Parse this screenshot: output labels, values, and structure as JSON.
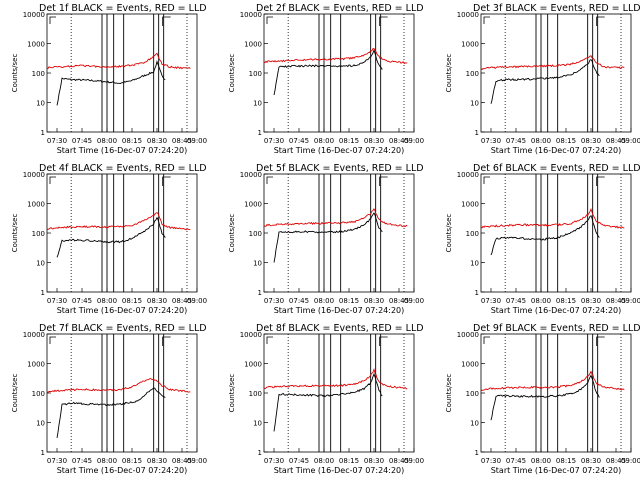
{
  "chart_data": [
    {
      "type": "line",
      "title": "Det 1f BLACK = Events, RED = LLD",
      "ylabel": "Counts/sec",
      "xlabel": "Start Time (16-Dec-07 07:24:20)",
      "x_ticks": [
        "07:30",
        "07:45",
        "08:00",
        "08:15",
        "08:30",
        "08:45",
        "09:00"
      ],
      "y_ticks": [
        "1",
        "10",
        "100",
        "1000",
        "10000"
      ],
      "ylim": [
        1,
        10000
      ],
      "scale": "log",
      "series": [
        {
          "name": "Events",
          "color": "#000000",
          "x_minutes": [
            30,
            33,
            38,
            45,
            52,
            60,
            68,
            75,
            82,
            88,
            90,
            93,
            95
          ],
          "values": [
            8,
            65,
            60,
            58,
            55,
            50,
            45,
            55,
            80,
            110,
            230,
            80,
            60
          ]
        },
        {
          "name": "LLD",
          "color": "#e00000",
          "x_minutes": [
            24,
            30,
            38,
            45,
            52,
            60,
            68,
            75,
            82,
            88,
            90,
            93,
            98,
            110
          ],
          "values": [
            150,
            160,
            170,
            175,
            170,
            160,
            170,
            180,
            220,
            350,
            450,
            200,
            160,
            140
          ]
        }
      ]
    },
    {
      "type": "line",
      "title": "Det 2f BLACK = Events, RED = LLD",
      "ylabel": "Counts/sec",
      "xlabel": "Start Time (16-Dec-07 07:24:20)",
      "x_ticks": [
        "07:30",
        "07:45",
        "08:00",
        "08:15",
        "08:30",
        "08:45",
        "09:00"
      ],
      "y_ticks": [
        "1",
        "10",
        "100",
        "1000",
        "10000"
      ],
      "ylim": [
        1,
        10000
      ],
      "scale": "log",
      "series": [
        {
          "name": "Events",
          "color": "#000000",
          "x_minutes": [
            30,
            33,
            40,
            50,
            60,
            70,
            78,
            84,
            88,
            90,
            93,
            95
          ],
          "values": [
            18,
            160,
            170,
            175,
            175,
            170,
            180,
            230,
            350,
            550,
            180,
            130
          ]
        },
        {
          "name": "LLD",
          "color": "#e00000",
          "x_minutes": [
            24,
            30,
            40,
            50,
            60,
            70,
            78,
            84,
            88,
            90,
            93,
            98,
            110
          ],
          "values": [
            240,
            250,
            270,
            280,
            290,
            300,
            320,
            400,
            550,
            700,
            350,
            250,
            220
          ]
        }
      ]
    },
    {
      "type": "line",
      "title": "Det 3f BLACK = Events, RED = LLD",
      "ylabel": "Counts/sec",
      "xlabel": "Start Time (16-Dec-07 07:24:20)",
      "x_ticks": [
        "07:30",
        "07:45",
        "08:00",
        "08:15",
        "08:30",
        "08:45",
        "09:00"
      ],
      "y_ticks": [
        "1",
        "10",
        "100",
        "1000",
        "10000"
      ],
      "ylim": [
        1,
        10000
      ],
      "scale": "log",
      "series": [
        {
          "name": "Events",
          "color": "#000000",
          "x_minutes": [
            30,
            33,
            40,
            50,
            60,
            70,
            78,
            84,
            88,
            90,
            93,
            95
          ],
          "values": [
            9,
            55,
            60,
            60,
            65,
            70,
            90,
            130,
            200,
            300,
            110,
            80
          ]
        },
        {
          "name": "LLD",
          "color": "#e00000",
          "x_minutes": [
            24,
            30,
            40,
            50,
            60,
            70,
            78,
            84,
            88,
            90,
            93,
            98,
            110
          ],
          "values": [
            140,
            150,
            160,
            165,
            170,
            180,
            200,
            260,
            330,
            380,
            220,
            160,
            150
          ]
        }
      ]
    },
    {
      "type": "line",
      "title": "Det 4f BLACK = Events, RED = LLD",
      "ylabel": "Counts/sec",
      "xlabel": "Start Time (16-Dec-07 07:24:20)",
      "x_ticks": [
        "07:30",
        "07:45",
        "08:00",
        "08:15",
        "08:30",
        "08:45",
        "09:00"
      ],
      "y_ticks": [
        "1",
        "10",
        "100",
        "1000",
        "10000"
      ],
      "ylim": [
        1,
        10000
      ],
      "scale": "log",
      "series": [
        {
          "name": "Events",
          "color": "#000000",
          "x_minutes": [
            30,
            33,
            40,
            50,
            60,
            68,
            75,
            82,
            88,
            90,
            93,
            95
          ],
          "values": [
            15,
            55,
            58,
            55,
            50,
            50,
            65,
            110,
            200,
            350,
            100,
            70
          ]
        },
        {
          "name": "LLD",
          "color": "#e00000",
          "x_minutes": [
            24,
            30,
            40,
            50,
            60,
            68,
            75,
            82,
            88,
            90,
            93,
            98,
            110
          ],
          "values": [
            140,
            150,
            160,
            165,
            160,
            165,
            180,
            260,
            380,
            520,
            200,
            150,
            130
          ]
        }
      ]
    },
    {
      "type": "line",
      "title": "Det 5f BLACK = Events, RED = LLD",
      "ylabel": "Counts/sec",
      "xlabel": "Start Time (16-Dec-07 07:24:20)",
      "x_ticks": [
        "07:30",
        "07:45",
        "08:00",
        "08:15",
        "08:30",
        "08:45",
        "09:00"
      ],
      "y_ticks": [
        "1",
        "10",
        "100",
        "1000",
        "10000"
      ],
      "ylim": [
        1,
        10000
      ],
      "scale": "log",
      "series": [
        {
          "name": "Events",
          "color": "#000000",
          "x_minutes": [
            30,
            33,
            40,
            50,
            60,
            70,
            78,
            84,
            88,
            90,
            93,
            95
          ],
          "values": [
            10,
            110,
            110,
            110,
            105,
            110,
            130,
            180,
            300,
            500,
            150,
            110
          ]
        },
        {
          "name": "LLD",
          "color": "#e00000",
          "x_minutes": [
            24,
            30,
            40,
            50,
            60,
            70,
            78,
            84,
            88,
            90,
            93,
            98,
            110
          ],
          "values": [
            180,
            190,
            200,
            210,
            215,
            220,
            240,
            320,
            450,
            650,
            280,
            200,
            170
          ]
        }
      ]
    },
    {
      "type": "line",
      "title": "Det 6f BLACK = Events, RED = LLD",
      "ylabel": "Counts/sec",
      "xlabel": "Start Time (16-Dec-07 07:24:20)",
      "x_ticks": [
        "07:30",
        "07:45",
        "08:00",
        "08:15",
        "08:30",
        "08:45",
        "09:00"
      ],
      "y_ticks": [
        "1",
        "10",
        "100",
        "1000",
        "10000"
      ],
      "ylim": [
        1,
        10000
      ],
      "scale": "log",
      "series": [
        {
          "name": "Events",
          "color": "#000000",
          "x_minutes": [
            30,
            33,
            40,
            50,
            60,
            70,
            78,
            84,
            88,
            90,
            93,
            95
          ],
          "values": [
            18,
            65,
            70,
            65,
            60,
            70,
            100,
            160,
            260,
            400,
            110,
            70
          ]
        },
        {
          "name": "LLD",
          "color": "#e00000",
          "x_minutes": [
            24,
            30,
            40,
            50,
            60,
            70,
            78,
            84,
            88,
            90,
            93,
            98,
            110
          ],
          "values": [
            160,
            170,
            180,
            190,
            185,
            190,
            210,
            290,
            420,
            600,
            250,
            180,
            150
          ]
        }
      ]
    },
    {
      "type": "line",
      "title": "Det 7f BLACK = Events, RED = LLD",
      "ylabel": "Counts/sec",
      "xlabel": "Start Time (16-Dec-07 07:24:20)",
      "x_ticks": [
        "07:30",
        "07:45",
        "08:00",
        "08:15",
        "08:30",
        "08:45",
        "09:00"
      ],
      "y_ticks": [
        "1",
        "10",
        "100",
        "1000",
        "10000"
      ],
      "ylim": [
        1,
        10000
      ],
      "scale": "log",
      "series": [
        {
          "name": "Events",
          "color": "#000000",
          "x_minutes": [
            30,
            33,
            40,
            50,
            60,
            68,
            75,
            80,
            84,
            88,
            90,
            93,
            95
          ],
          "values": [
            3,
            40,
            45,
            42,
            40,
            42,
            48,
            60,
            100,
            150,
            120,
            80,
            70
          ]
        },
        {
          "name": "LLD",
          "color": "#e00000",
          "x_minutes": [
            24,
            30,
            40,
            50,
            60,
            68,
            75,
            80,
            84,
            88,
            90,
            93,
            98,
            110
          ],
          "values": [
            110,
            120,
            130,
            130,
            125,
            130,
            160,
            220,
            280,
            300,
            260,
            180,
            130,
            110
          ]
        }
      ]
    },
    {
      "type": "line",
      "title": "Det 8f BLACK = Events, RED = LLD",
      "ylabel": "Counts/sec",
      "xlabel": "Start Time (16-Dec-07 07:24:20)",
      "x_ticks": [
        "07:30",
        "07:45",
        "08:00",
        "08:15",
        "08:30",
        "08:45",
        "09:00"
      ],
      "y_ticks": [
        "1",
        "10",
        "100",
        "1000",
        "10000"
      ],
      "ylim": [
        1,
        10000
      ],
      "scale": "log",
      "series": [
        {
          "name": "Events",
          "color": "#000000",
          "x_minutes": [
            30,
            33,
            40,
            50,
            60,
            70,
            78,
            84,
            88,
            90,
            93,
            95
          ],
          "values": [
            5,
            90,
            90,
            85,
            80,
            90,
            105,
            140,
            220,
            450,
            120,
            80
          ]
        },
        {
          "name": "LLD",
          "color": "#e00000",
          "x_minutes": [
            24,
            30,
            40,
            50,
            60,
            70,
            78,
            84,
            88,
            90,
            93,
            98,
            110
          ],
          "values": [
            150,
            160,
            170,
            175,
            175,
            180,
            200,
            260,
            380,
            600,
            230,
            170,
            140
          ]
        }
      ]
    },
    {
      "type": "line",
      "title": "Det 9f BLACK = Events, RED = LLD",
      "ylabel": "Counts/sec",
      "xlabel": "Start Time (16-Dec-07 07:24:20)",
      "x_ticks": [
        "07:30",
        "07:45",
        "08:00",
        "08:15",
        "08:30",
        "08:45",
        "09:00"
      ],
      "y_ticks": [
        "1",
        "10",
        "100",
        "1000",
        "10000"
      ],
      "ylim": [
        1,
        10000
      ],
      "scale": "log",
      "series": [
        {
          "name": "Events",
          "color": "#000000",
          "x_minutes": [
            30,
            33,
            40,
            50,
            60,
            70,
            78,
            84,
            88,
            90,
            93,
            95
          ],
          "values": [
            12,
            80,
            80,
            78,
            75,
            80,
            95,
            130,
            210,
            400,
            110,
            70
          ]
        },
        {
          "name": "LLD",
          "color": "#e00000",
          "x_minutes": [
            24,
            30,
            40,
            50,
            60,
            70,
            78,
            84,
            88,
            90,
            93,
            98,
            110
          ],
          "values": [
            130,
            140,
            150,
            155,
            155,
            160,
            180,
            240,
            360,
            550,
            220,
            160,
            130
          ]
        }
      ]
    }
  ]
}
